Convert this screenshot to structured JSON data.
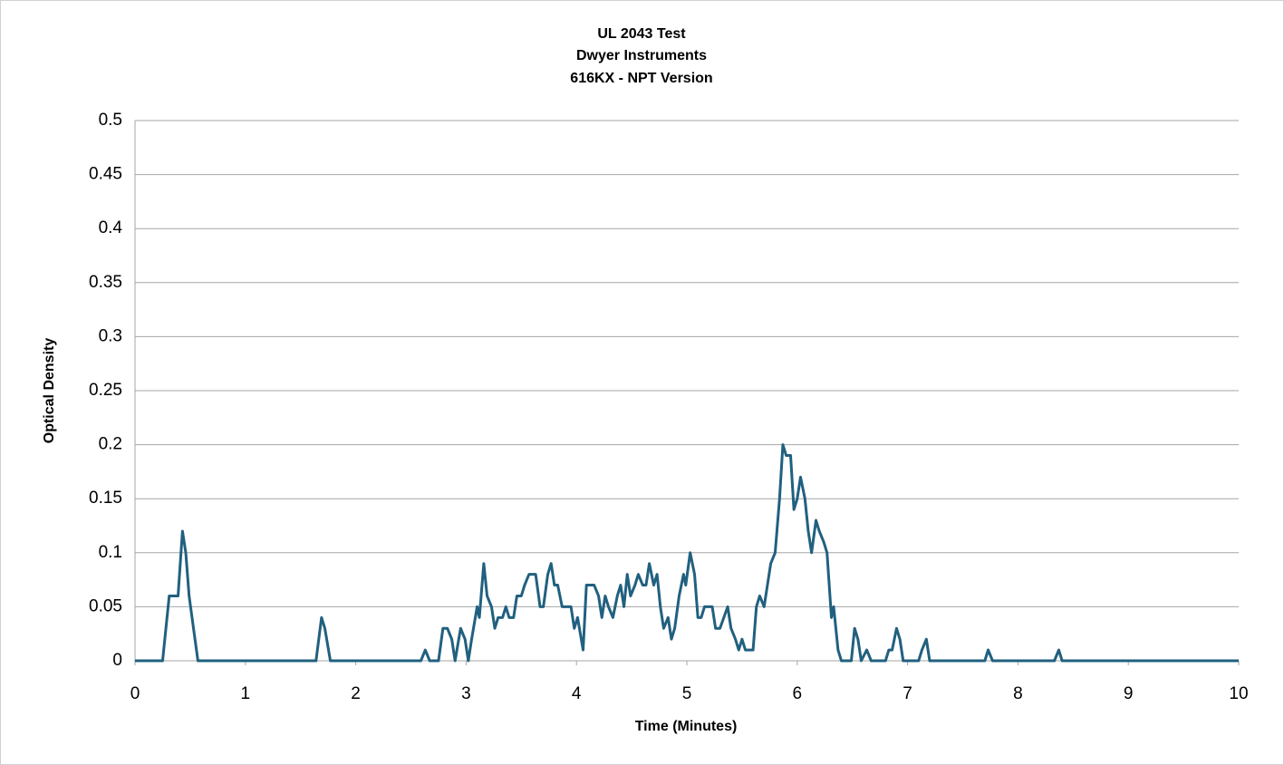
{
  "chart_data": {
    "type": "line",
    "title": [
      "UL 2043 Test",
      "Dwyer Instruments",
      "616KX - NPT Version"
    ],
    "xlabel": "Time (Minutes)",
    "ylabel": "Optical Density",
    "x": [
      0,
      0.25,
      0.31,
      0.39,
      0.43,
      0.46,
      0.49,
      0.53,
      0.57,
      1.64,
      1.69,
      1.72,
      1.77,
      2.59,
      2.63,
      2.67,
      2.75,
      2.79,
      2.83,
      2.87,
      2.9,
      2.95,
      2.99,
      3.02,
      3.05,
      3.1,
      3.12,
      3.16,
      3.19,
      3.23,
      3.26,
      3.29,
      3.33,
      3.36,
      3.39,
      3.43,
      3.46,
      3.5,
      3.53,
      3.57,
      3.63,
      3.67,
      3.7,
      3.74,
      3.77,
      3.8,
      3.83,
      3.87,
      3.95,
      3.98,
      4.01,
      4.06,
      4.09,
      4.16,
      4.2,
      4.23,
      4.26,
      4.29,
      4.33,
      4.37,
      4.4,
      4.43,
      4.46,
      4.49,
      4.53,
      4.56,
      4.6,
      4.63,
      4.66,
      4.7,
      4.73,
      4.76,
      4.79,
      4.83,
      4.86,
      4.89,
      4.93,
      4.97,
      4.99,
      5.03,
      5.07,
      5.1,
      5.13,
      5.16,
      5.23,
      5.26,
      5.3,
      5.37,
      5.4,
      5.44,
      5.47,
      5.5,
      5.53,
      5.6,
      5.63,
      5.66,
      5.7,
      5.73,
      5.76,
      5.8,
      5.84,
      5.87,
      5.9,
      5.94,
      5.97,
      6.0,
      6.03,
      6.07,
      6.1,
      6.13,
      6.17,
      6.2,
      6.24,
      6.27,
      6.31,
      6.33,
      6.37,
      6.4,
      6.49,
      6.52,
      6.55,
      6.58,
      6.63,
      6.67,
      6.8,
      6.83,
      6.86,
      6.9,
      6.93,
      6.96,
      7.1,
      7.13,
      7.17,
      7.2,
      7.7,
      7.73,
      7.77,
      8.33,
      8.37,
      8.4,
      10
    ],
    "values": [
      0,
      0,
      0.06,
      0.06,
      0.12,
      0.1,
      0.06,
      0.03,
      0,
      0,
      0.04,
      0.03,
      0,
      0,
      0.01,
      0,
      0,
      0.03,
      0.03,
      0.02,
      0,
      0.03,
      0.02,
      0,
      0.02,
      0.05,
      0.04,
      0.09,
      0.06,
      0.05,
      0.03,
      0.04,
      0.04,
      0.05,
      0.04,
      0.04,
      0.06,
      0.06,
      0.07,
      0.08,
      0.08,
      0.05,
      0.05,
      0.08,
      0.09,
      0.07,
      0.07,
      0.05,
      0.05,
      0.03,
      0.04,
      0.01,
      0.07,
      0.07,
      0.06,
      0.04,
      0.06,
      0.05,
      0.04,
      0.06,
      0.07,
      0.05,
      0.08,
      0.06,
      0.07,
      0.08,
      0.07,
      0.07,
      0.09,
      0.07,
      0.08,
      0.05,
      0.03,
      0.04,
      0.02,
      0.03,
      0.06,
      0.08,
      0.07,
      0.1,
      0.08,
      0.04,
      0.04,
      0.05,
      0.05,
      0.03,
      0.03,
      0.05,
      0.03,
      0.02,
      0.01,
      0.02,
      0.01,
      0.01,
      0.05,
      0.06,
      0.05,
      0.07,
      0.09,
      0.1,
      0.15,
      0.2,
      0.19,
      0.19,
      0.14,
      0.15,
      0.17,
      0.15,
      0.12,
      0.1,
      0.13,
      0.12,
      0.11,
      0.1,
      0.04,
      0.05,
      0.01,
      0,
      0,
      0.03,
      0.02,
      0,
      0.01,
      0,
      0,
      0.01,
      0.01,
      0.03,
      0.02,
      0,
      0,
      0.01,
      0.02,
      0,
      0,
      0.01,
      0,
      0,
      0.01,
      0,
      0
    ],
    "color": "#21607f",
    "xlim": [
      0,
      10
    ],
    "xticks": [
      0,
      1,
      2,
      3,
      4,
      5,
      6,
      7,
      8,
      9,
      10
    ],
    "ylim": [
      0,
      0.5
    ],
    "yticks": [
      0,
      0.05,
      0.1,
      0.15,
      0.2,
      0.25,
      0.3,
      0.35,
      0.4,
      0.45,
      0.5
    ],
    "grid": true
  }
}
